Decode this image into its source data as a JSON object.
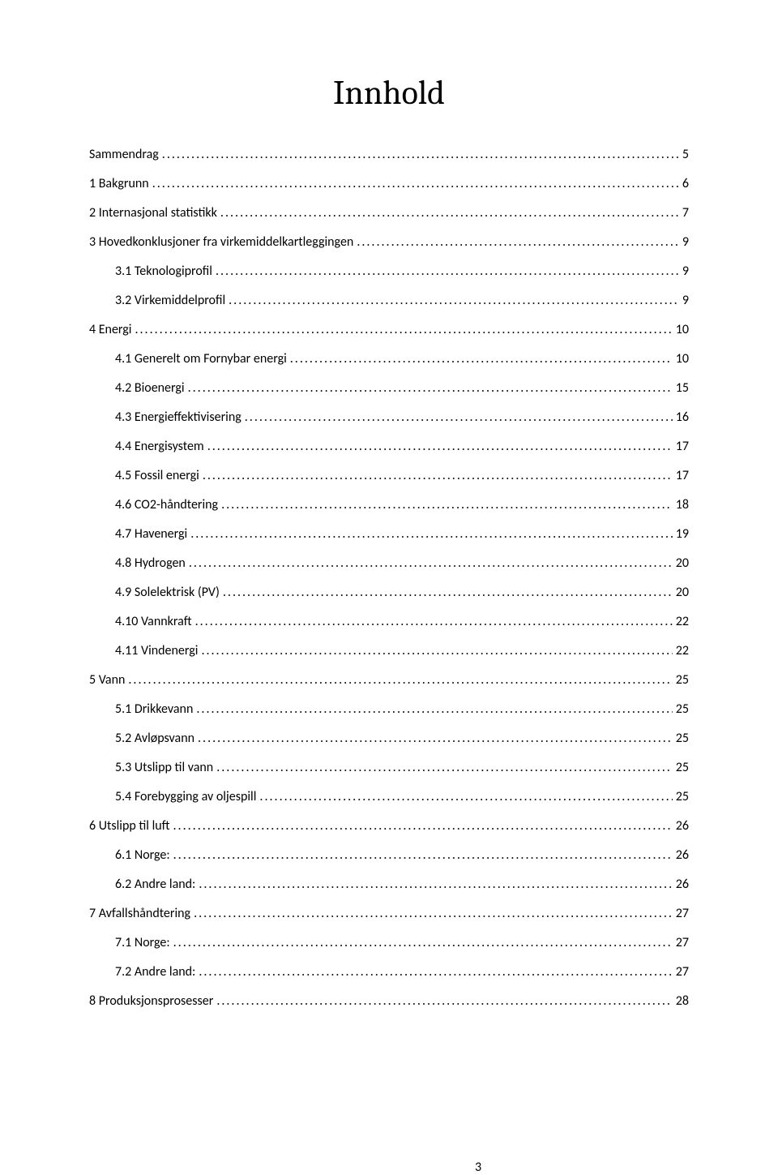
{
  "title": "Innhold",
  "page_number": "3",
  "entries": [
    {
      "label": "Sammendrag",
      "page": "5",
      "level": 0
    },
    {
      "label": "1 Bakgrunn",
      "page": "6",
      "level": 0
    },
    {
      "label": "2 Internasjonal statistikk",
      "page": "7",
      "level": 0
    },
    {
      "label": "3 Hovedkonklusjoner fra virkemiddelkartleggingen",
      "page": "9",
      "level": 0
    },
    {
      "label": "3.1 Teknologiprofil",
      "page": "9",
      "level": 1
    },
    {
      "label": "3.2 Virkemiddelprofil",
      "page": "9",
      "level": 1
    },
    {
      "label": "4 Energi",
      "page": "10",
      "level": 0
    },
    {
      "label": "4.1 Generelt om Fornybar energi",
      "page": "10",
      "level": 1
    },
    {
      "label": "4.2 Bioenergi",
      "page": "15",
      "level": 1
    },
    {
      "label": "4.3 Energieffektivisering",
      "page": "16",
      "level": 1
    },
    {
      "label": "4.4 Energisystem",
      "page": "17",
      "level": 1
    },
    {
      "label": "4.5 Fossil energi",
      "page": "17",
      "level": 1
    },
    {
      "label": "4.6 CO2-håndtering",
      "page": "18",
      "level": 1
    },
    {
      "label": "4.7 Havenergi",
      "page": "19",
      "level": 1
    },
    {
      "label": "4.8 Hydrogen",
      "page": "20",
      "level": 1
    },
    {
      "label": "4.9 Solelektrisk (PV)",
      "page": "20",
      "level": 1
    },
    {
      "label": "4.10 Vannkraft",
      "page": "22",
      "level": 1
    },
    {
      "label": "4.11 Vindenergi",
      "page": "22",
      "level": 1
    },
    {
      "label": "5 Vann",
      "page": "25",
      "level": 0
    },
    {
      "label": "5.1 Drikkevann",
      "page": "25",
      "level": 1
    },
    {
      "label": "5.2 Avløpsvann",
      "page": "25",
      "level": 1
    },
    {
      "label": "5.3 Utslipp til vann",
      "page": "25",
      "level": 1
    },
    {
      "label": "5.4 Forebygging av oljespill",
      "page": "25",
      "level": 1
    },
    {
      "label": "6 Utslipp til luft",
      "page": "26",
      "level": 0
    },
    {
      "label": "6.1 Norge:",
      "page": "26",
      "level": 1
    },
    {
      "label": "6.2 Andre land:",
      "page": "26",
      "level": 1
    },
    {
      "label": "7 Avfallshåndtering",
      "page": "27",
      "level": 0
    },
    {
      "label": "7.1 Norge:",
      "page": "27",
      "level": 1
    },
    {
      "label": "7.2 Andre land:",
      "page": "27",
      "level": 1
    },
    {
      "label": "8 Produksjonsprosesser",
      "page": "28",
      "level": 0
    }
  ]
}
